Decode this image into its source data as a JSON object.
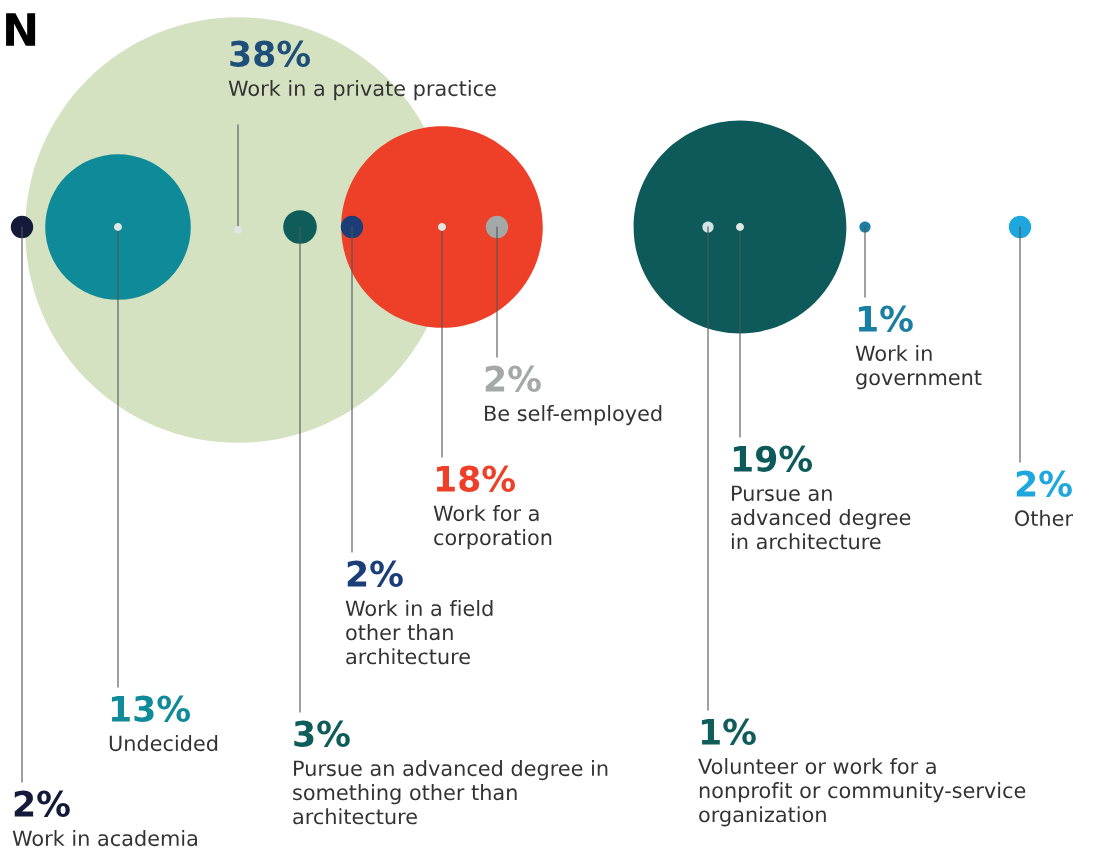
{
  "chart_data": {
    "type": "other",
    "title": "N",
    "categories": [
      "Work in academia",
      "Undecided",
      "Work in a private practice",
      "Pursue an advanced degree in something other than architecture",
      "Work in a field other than architecture",
      "Work for a corporation",
      "Be self-employed",
      "Volunteer or work for a nonprofit or community-service organization",
      "Pursue an advanced degree in architecture",
      "Work in government",
      "Other"
    ],
    "values": [
      2,
      13,
      38,
      3,
      2,
      18,
      2,
      1,
      19,
      1,
      2
    ],
    "value_labels": [
      "2%",
      "13%",
      "38%",
      "3%",
      "2%",
      "18%",
      "2%",
      "1%",
      "19%",
      "1%",
      "2%"
    ],
    "colors": [
      "#15193a",
      "#0f8a98",
      "#d4e2c2",
      "#0f5d5a",
      "#1b3d78",
      "#ee4028",
      "#a4a8a7",
      "#d0e4e6",
      "#0e5a5a",
      "#1a7fa3",
      "#1ea7de"
    ]
  }
}
